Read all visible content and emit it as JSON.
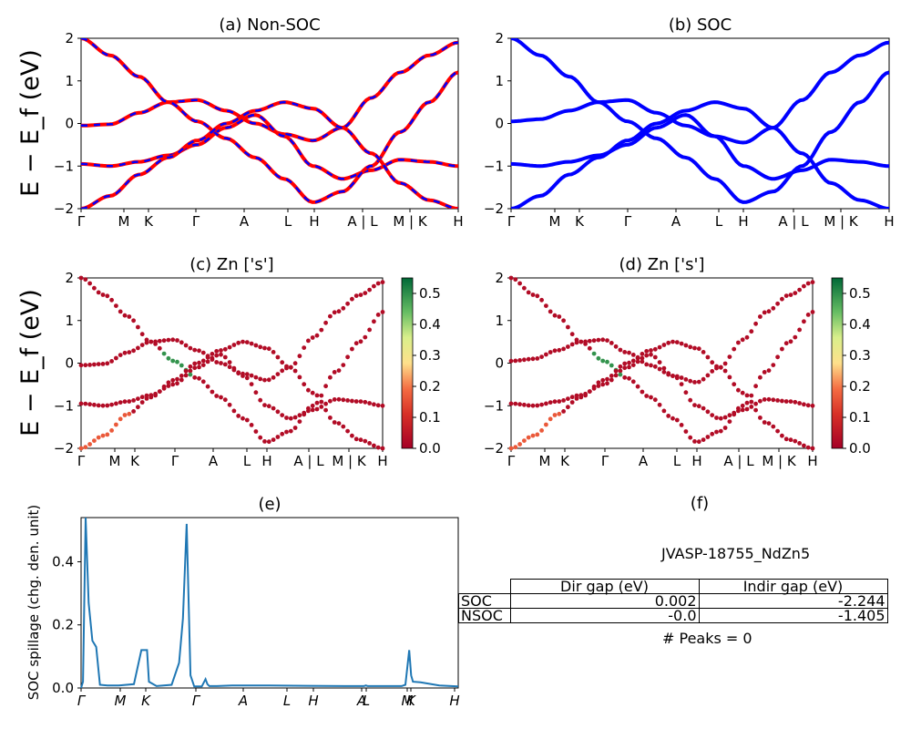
{
  "chart_data": [
    {
      "type": "line",
      "title": "(a) Non-SOC",
      "ylabel": "E − E_f (eV)",
      "ylim": [
        -2,
        2
      ],
      "yticks": [
        "2",
        "1",
        "0",
        "−1",
        "−2"
      ],
      "kpath_labels": [
        "Γ",
        "M",
        "K",
        "Γ",
        "A",
        "L",
        "H",
        "A | L",
        "M | K",
        "H"
      ],
      "series": [
        {
          "color": "#ff0000",
          "style": "solid"
        },
        {
          "color": "#0000ff",
          "style": "dashed"
        }
      ],
      "bands_sampled": [
        [
          -0.05,
          -0.02,
          0.25,
          0.5,
          0.55,
          0.3,
          0.0,
          -0.25,
          -0.4,
          -0.1,
          0.6,
          1.2,
          1.6,
          1.9
        ],
        [
          -0.95,
          -1.0,
          -0.9,
          -0.75,
          -0.5,
          -0.1,
          0.2,
          -0.3,
          -1.0,
          -1.3,
          -1.1,
          -0.85,
          -0.9,
          -1.0
        ],
        [
          2.0,
          1.6,
          1.1,
          0.5,
          0.05,
          -0.35,
          -0.8,
          -1.3,
          -1.85,
          -1.6,
          -1.0,
          -0.2,
          0.5,
          1.2
        ],
        [
          -2.0,
          -1.7,
          -1.2,
          -0.8,
          -0.4,
          0.0,
          0.3,
          0.5,
          0.35,
          -0.1,
          -0.7,
          -1.4,
          -1.8,
          -2.0
        ]
      ]
    },
    {
      "type": "line",
      "title": "(b) SOC",
      "ylim": [
        -2,
        2
      ],
      "yticks": [
        "2",
        "1",
        "0",
        "−1",
        "−2"
      ],
      "kpath_labels": [
        "Γ",
        "M",
        "K",
        "Γ",
        "A",
        "L",
        "H",
        "A | L",
        "M | K",
        "H"
      ],
      "series": [
        {
          "color": "#0000ff",
          "style": "solid"
        }
      ],
      "bands_sampled": [
        [
          0.05,
          0.1,
          0.3,
          0.5,
          0.55,
          0.25,
          -0.05,
          -0.3,
          -0.45,
          -0.1,
          0.55,
          1.2,
          1.6,
          1.9
        ],
        [
          -0.95,
          -1.0,
          -0.9,
          -0.75,
          -0.5,
          -0.1,
          0.2,
          -0.3,
          -1.0,
          -1.3,
          -1.1,
          -0.85,
          -0.9,
          -1.0
        ],
        [
          2.0,
          1.6,
          1.1,
          0.5,
          0.05,
          -0.35,
          -0.8,
          -1.3,
          -1.85,
          -1.6,
          -1.0,
          -0.2,
          0.5,
          1.2
        ],
        [
          -2.0,
          -1.7,
          -1.2,
          -0.8,
          -0.4,
          0.0,
          0.3,
          0.5,
          0.35,
          -0.1,
          -0.7,
          -1.4,
          -1.8,
          -2.0
        ]
      ]
    },
    {
      "type": "scatter",
      "title": "(c)  Zn ['s']",
      "ylabel": "E − E_f (eV)",
      "ylim": [
        -2,
        2
      ],
      "yticks": [
        "2",
        "1",
        "0",
        "−1",
        "−2"
      ],
      "kpath_labels": [
        "Γ",
        "M",
        "K",
        "Γ",
        "A",
        "L",
        "H",
        "A | L",
        "M | K",
        "H"
      ],
      "colorbar": {
        "range": [
          0.0,
          0.55
        ],
        "ticks": [
          "0.0",
          "0.1",
          "0.2",
          "0.3",
          "0.4",
          "0.5"
        ],
        "colormap": "RdYlGn"
      }
    },
    {
      "type": "scatter",
      "title": "(d) Zn ['s']",
      "ylim": [
        -2,
        2
      ],
      "yticks": [
        "2",
        "1",
        "0",
        "−1",
        "−2"
      ],
      "kpath_labels": [
        "Γ",
        "M",
        "K",
        "Γ",
        "A",
        "L",
        "H",
        "A | L",
        "M | K",
        "H"
      ],
      "colorbar": {
        "range": [
          0.0,
          0.55
        ],
        "ticks": [
          "0.0",
          "0.1",
          "0.2",
          "0.3",
          "0.4",
          "0.5"
        ],
        "colormap": "RdYlGn"
      }
    },
    {
      "type": "line",
      "title": "(e)",
      "ylabel": "SOC spillage (chg. den. unit)",
      "ylim": [
        0,
        0.54
      ],
      "yticks": [
        "0.0",
        "0.2",
        "0.4"
      ],
      "kpath_labels": [
        "Γ",
        "M",
        "K",
        "Γ",
        "A",
        "L",
        "H",
        "A",
        "L",
        "M",
        "K",
        "H"
      ],
      "series": [
        {
          "color": "#1f77b4",
          "x": [
            0.0,
            0.005,
            0.012,
            0.02,
            0.03,
            0.04,
            0.05,
            0.07,
            0.1,
            0.14,
            0.16,
            0.165,
            0.175,
            0.18,
            0.2,
            0.24,
            0.26,
            0.27,
            0.28,
            0.29,
            0.3,
            0.32,
            0.33,
            0.335,
            0.34,
            0.36,
            0.4,
            0.5,
            0.6,
            0.7,
            0.75,
            0.755,
            0.76,
            0.8,
            0.85,
            0.86,
            0.87,
            0.875,
            0.88,
            0.9,
            0.95,
            1.0
          ],
          "values": [
            0.0,
            0.02,
            0.54,
            0.27,
            0.15,
            0.13,
            0.01,
            0.008,
            0.008,
            0.012,
            0.12,
            0.12,
            0.12,
            0.02,
            0.006,
            0.01,
            0.08,
            0.22,
            0.52,
            0.04,
            0.005,
            0.005,
            0.028,
            0.012,
            0.006,
            0.006,
            0.008,
            0.008,
            0.007,
            0.006,
            0.006,
            0.008,
            0.006,
            0.006,
            0.006,
            0.01,
            0.12,
            0.04,
            0.02,
            0.018,
            0.008,
            0.005
          ]
        }
      ]
    }
  ],
  "panel_f": {
    "title": "(f)",
    "system": "JVASP-18755_NdZn5",
    "table": {
      "headers": [
        "",
        "Dir gap (eV)",
        "Indir gap (eV)"
      ],
      "rows": [
        [
          "SOC",
          "0.002",
          "-2.244"
        ],
        [
          "NSOC",
          "-0.0",
          "-1.405"
        ]
      ]
    },
    "peaks": "# Peaks = 0"
  }
}
